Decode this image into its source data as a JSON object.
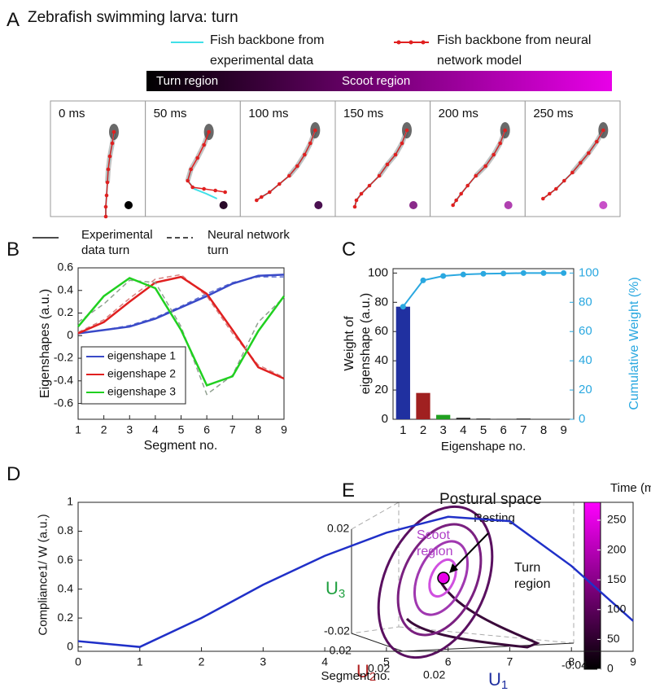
{
  "panel_labels": [
    "A",
    "B",
    "C",
    "D",
    "E"
  ],
  "panel_a": {
    "title": "Zebrafish swimming larva: turn",
    "legend": [
      {
        "label": "Fish backbone from experimental data",
        "color": "#40e0e8"
      },
      {
        "label": "Fish backbone from neural network model",
        "color": "#e02020"
      }
    ],
    "bar": {
      "turn_label": "Turn region",
      "scoot_label": "Scoot region",
      "colors": [
        "#000000",
        "#e800e8"
      ]
    },
    "frames": [
      {
        "time": "0 ms",
        "dot_color": "#000000"
      },
      {
        "time": "50 ms",
        "dot_color": "#2a0a2a"
      },
      {
        "time": "100 ms",
        "dot_color": "#4a1050"
      },
      {
        "time": "150 ms",
        "dot_color": "#8a2a8a"
      },
      {
        "time": "200 ms",
        "dot_color": "#b040b0"
      },
      {
        "time": "250 ms",
        "dot_color": "#c850c8"
      }
    ]
  },
  "chart_data": [
    {
      "type": "line",
      "ylabel": "Eigenshapes (a.u.)",
      "xlabel": "Segment no.",
      "line_styles": [
        "Experimental data turn",
        "Neural network turn"
      ],
      "x": [
        1,
        2,
        3,
        4,
        5,
        6,
        7,
        8,
        9
      ],
      "xlim": [
        1,
        9
      ],
      "xticks": [
        1,
        2,
        3,
        4,
        5,
        6,
        7,
        8,
        9
      ],
      "ylim": [
        -0.74,
        0.6
      ],
      "yticks": [
        -0.6,
        -0.4,
        -0.2,
        0,
        0.2,
        0.4,
        0.6
      ],
      "series": [
        {
          "name": "eigenshape 1",
          "color": "#3a4ac8",
          "nn_color": "#6070d0",
          "values": [
            0.02,
            0.05,
            0.08,
            0.15,
            0.25,
            0.35,
            0.46,
            0.53,
            0.54
          ],
          "nn_values": [
            0.02,
            0.05,
            0.09,
            0.16,
            0.26,
            0.37,
            0.47,
            0.52,
            0.52
          ]
        },
        {
          "name": "eigenshape 2",
          "color": "#e02020",
          "nn_color": "#d88080",
          "values": [
            0.02,
            0.12,
            0.3,
            0.47,
            0.52,
            0.37,
            0.05,
            -0.28,
            -0.38
          ],
          "nn_values": [
            0.03,
            0.14,
            0.33,
            0.5,
            0.54,
            0.35,
            0.02,
            -0.26,
            -0.37
          ]
        },
        {
          "name": "eigenshape 3",
          "color": "#20d020",
          "nn_color": "#90a090",
          "values": [
            0.08,
            0.35,
            0.51,
            0.42,
            0.05,
            -0.44,
            -0.36,
            0.04,
            0.35
          ],
          "nn_values": [
            0.12,
            0.28,
            0.49,
            0.47,
            0.08,
            -0.52,
            -0.35,
            0.12,
            0.34
          ]
        }
      ]
    },
    {
      "type": "bar",
      "ylabel": "Weight of eigenshape (a.u.)",
      "y2label": "Cumulative Weight (%)",
      "xlabel": "Eigenshape no.",
      "categories": [
        1,
        2,
        3,
        4,
        5,
        6,
        7,
        8,
        9
      ],
      "ylim": [
        0,
        103
      ],
      "yticks": [
        0,
        20,
        40,
        60,
        80,
        100
      ],
      "y2lim": [
        0,
        103
      ],
      "y2ticks": [
        0,
        20,
        40,
        60,
        80,
        100
      ],
      "series": [
        {
          "colors": [
            "#2030a0",
            "#a02020",
            "#20a020",
            "#202020",
            "#202020",
            "#202020",
            "#202020",
            "#202020",
            "#202020"
          ],
          "values": [
            77,
            18,
            3,
            1,
            0.5,
            0.3,
            0.5,
            0.2,
            0.2
          ]
        },
        {
          "color": "#2aa8e0",
          "axis": "y2",
          "values": [
            77,
            95,
            98,
            99,
            99.5,
            99.7,
            100,
            100,
            100
          ]
        }
      ]
    },
    {
      "type": "line",
      "ylabel": "Compliance1/ W (a.u.)",
      "xlabel": "Segment no.",
      "x": [
        0,
        1,
        2,
        3,
        4,
        5,
        6,
        7,
        8,
        9
      ],
      "xlim": [
        0,
        9
      ],
      "xticks": [
        0,
        1,
        2,
        3,
        4,
        5,
        6,
        7,
        8,
        9
      ],
      "ylim": [
        -0.03,
        1
      ],
      "yticks": [
        0,
        0.2,
        0.4,
        0.6,
        0.8,
        1
      ],
      "series": [
        {
          "color": "#2030c8",
          "values": [
            0.04,
            0,
            0.2,
            0.43,
            0.63,
            0.79,
            0.9,
            0.87,
            0.56,
            0.18
          ]
        }
      ]
    }
  ],
  "panel_e": {
    "title": "Postural space",
    "scoot_label": "Scoot region",
    "turn_label": "Turn region",
    "resting_label": "Resting",
    "axes": [
      {
        "main": "U",
        "sub": "3",
        "color": "#20a040"
      },
      {
        "main": "U",
        "sub": "2",
        "color": "#b02020"
      },
      {
        "main": "U",
        "sub": "1",
        "color": "#2030a0"
      }
    ],
    "tick_labels": [
      "0.02",
      "-0.02",
      "-0.02",
      "0.02",
      "0.02",
      "-0.04"
    ],
    "colorbar": {
      "label": "Time (ms)",
      "lim": [
        0,
        280
      ],
      "ticks": [
        0,
        50,
        100,
        150,
        200,
        250
      ],
      "colors": [
        "#000000",
        "#ff00ff"
      ]
    }
  }
}
